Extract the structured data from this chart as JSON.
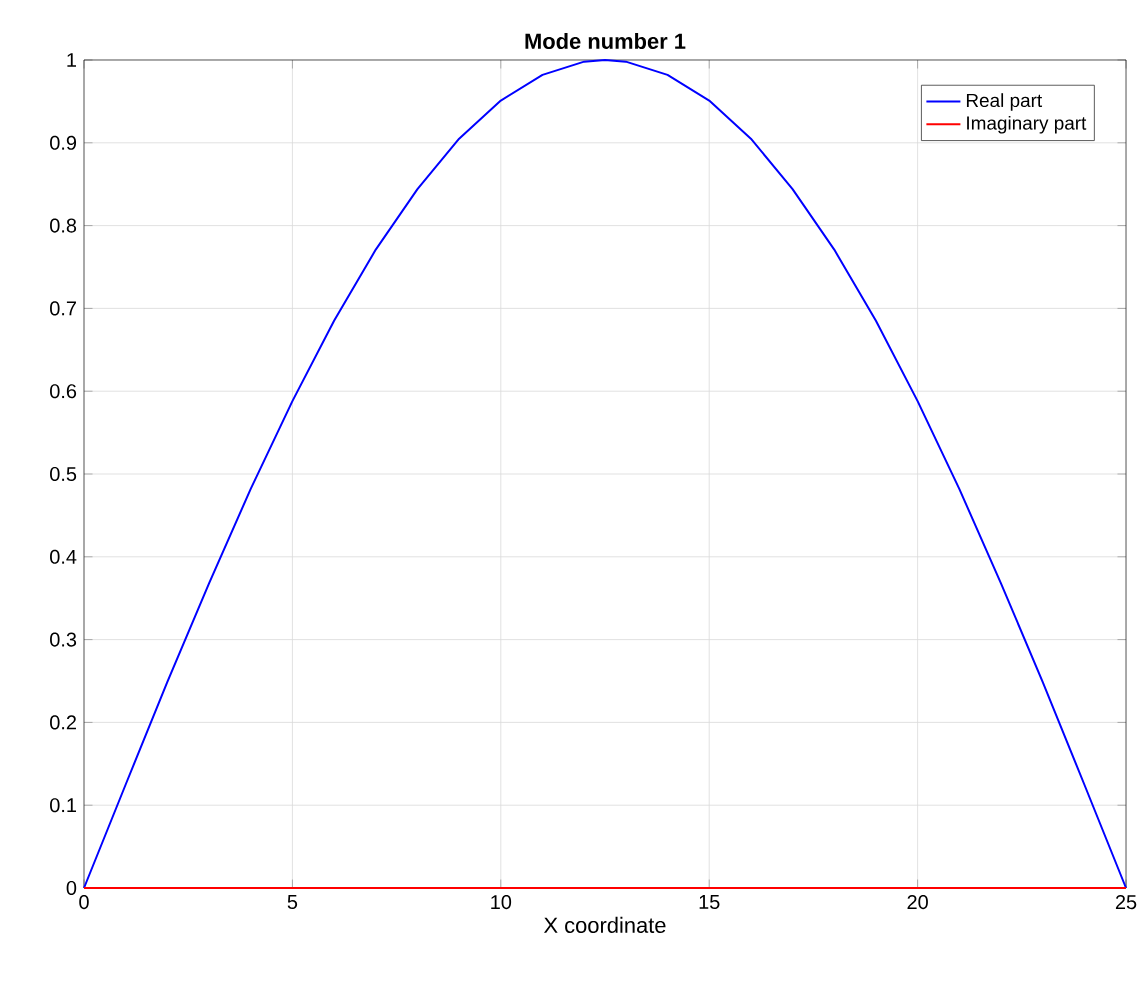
{
  "chart_data": {
    "type": "line",
    "title": "Mode number 1",
    "xlabel": "X coordinate",
    "x": [
      0,
      1,
      2,
      3,
      4,
      5,
      6,
      7,
      8,
      9,
      10,
      11,
      12,
      12.5,
      13,
      14,
      15,
      16,
      17,
      18,
      19,
      20,
      21,
      22,
      23,
      24,
      25
    ],
    "series": [
      {
        "name": "Real part",
        "color": "#0000ff",
        "values": [
          0,
          0.125,
          0.249,
          0.368,
          0.482,
          0.588,
          0.685,
          0.771,
          0.844,
          0.905,
          0.951,
          0.982,
          0.998,
          1,
          0.998,
          0.982,
          0.951,
          0.905,
          0.844,
          0.771,
          0.685,
          0.588,
          0.482,
          0.368,
          0.249,
          0.125,
          0
        ]
      },
      {
        "name": "Imaginary part",
        "color": "#ff0000",
        "values": [
          0,
          0,
          0,
          0,
          0,
          0,
          0,
          0,
          0,
          0,
          0,
          0,
          0,
          0,
          0,
          0,
          0,
          0,
          0,
          0,
          0,
          0,
          0,
          0,
          0,
          0,
          0
        ]
      }
    ],
    "xlim": [
      0,
      25
    ],
    "xticks": [
      0,
      5,
      10,
      15,
      20,
      25
    ],
    "ylim": [
      0,
      1
    ],
    "yticks": [
      0,
      0.1,
      0.2,
      0.3,
      0.4,
      0.5,
      0.6,
      0.7,
      0.8,
      0.9,
      1
    ],
    "grid": true,
    "legend": "top right",
    "marker": "none",
    "line_style": "solid"
  }
}
